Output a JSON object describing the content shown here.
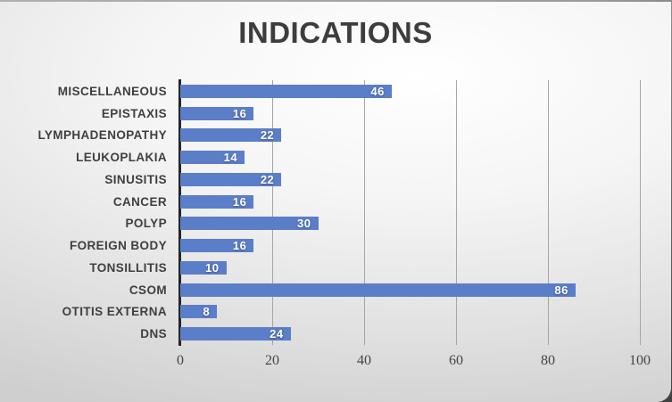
{
  "title": "INDICATIONS",
  "chart_data": {
    "type": "bar",
    "orientation": "horizontal",
    "title": "INDICATIONS",
    "xlabel": "",
    "ylabel": "",
    "categories": [
      "MISCELLANEOUS",
      "EPISTAXIS",
      "LYMPHADENOPATHY",
      "LEUKOPLAKIA",
      "SINUSITIS",
      "CANCER",
      "POLYP",
      "FOREIGN BODY",
      "TONSILLITIS",
      "CSOM",
      "OTITIS EXTERNA",
      "DNS"
    ],
    "values": [
      46,
      16,
      22,
      14,
      22,
      16,
      30,
      16,
      10,
      86,
      8,
      24
    ],
    "xlim": [
      0,
      100
    ],
    "x_ticks": [
      0,
      20,
      40,
      60,
      80,
      100
    ],
    "grid": true,
    "legend": "none",
    "bar_color": "#5b7ec9",
    "value_label_color": "#ffffff",
    "axis_line_color": "#262626",
    "gridline_color": "#a6a6a6",
    "text_color": "#3f3f3f"
  }
}
